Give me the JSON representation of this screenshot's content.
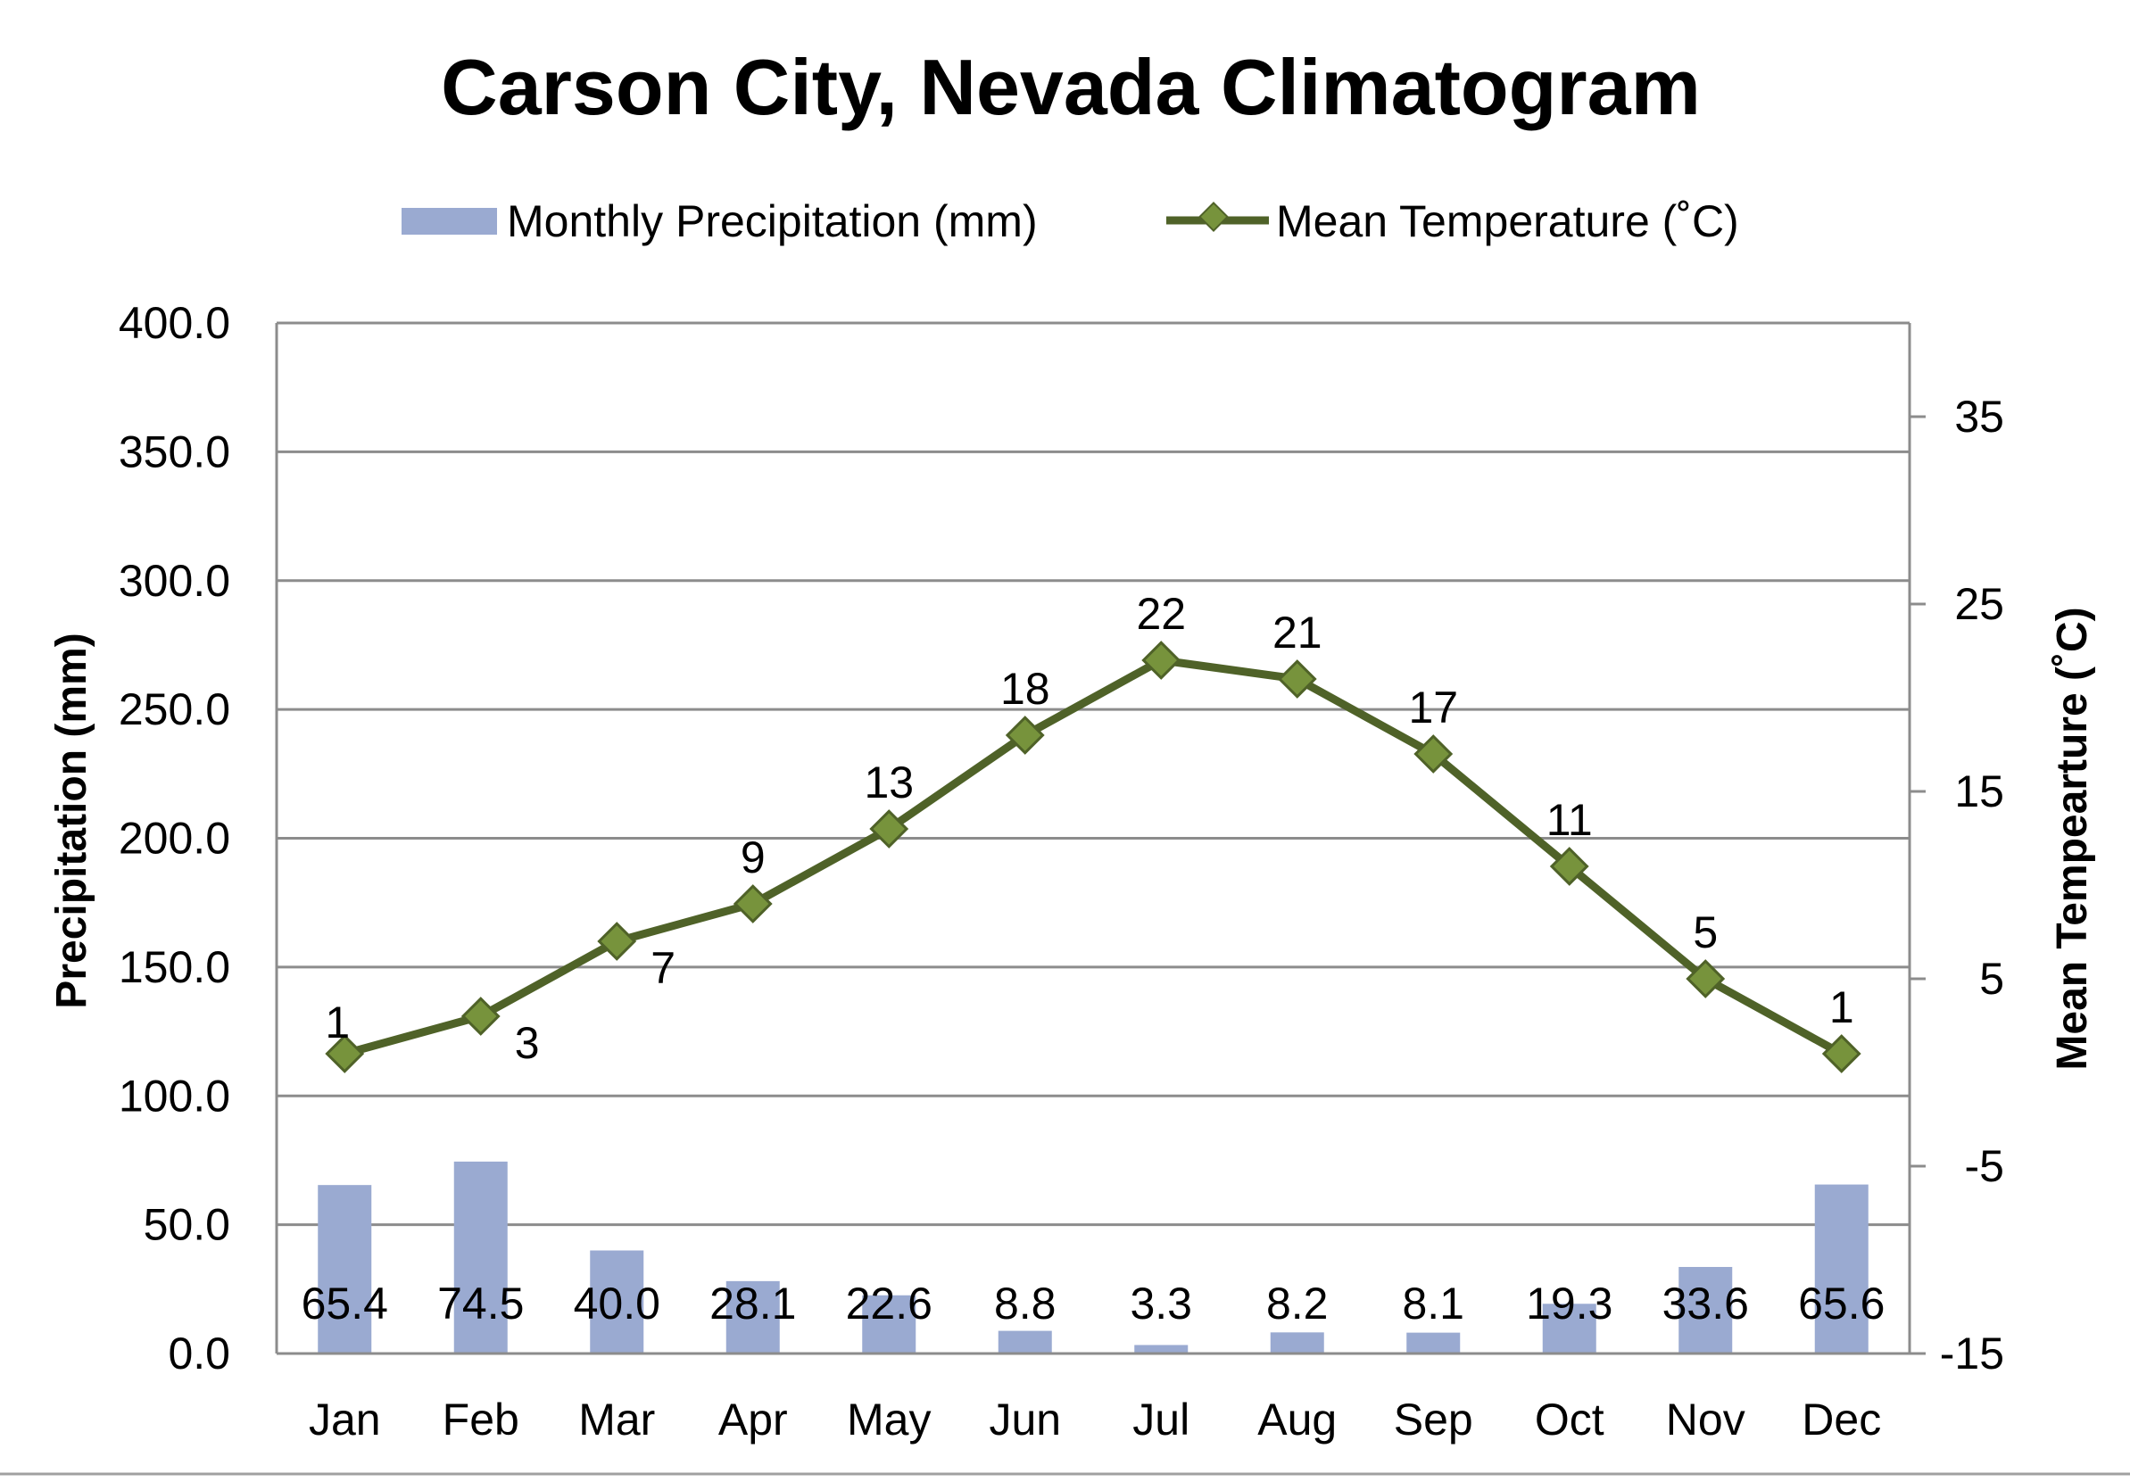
{
  "chart_data": {
    "type": "bar",
    "title": "Carson City, Nevada Climatogram",
    "categories": [
      "Jan",
      "Feb",
      "Mar",
      "Apr",
      "May",
      "Jun",
      "Jul",
      "Aug",
      "Sep",
      "Oct",
      "Nov",
      "Dec"
    ],
    "series": [
      {
        "name": "Monthly Precipitation (mm)",
        "type": "bar",
        "axis": "left",
        "values": [
          65.4,
          74.5,
          40.0,
          28.1,
          22.6,
          8.8,
          3.3,
          8.2,
          8.1,
          19.3,
          33.6,
          65.6
        ],
        "labels": [
          "65.4",
          "74.5",
          "40.0",
          "28.1",
          "22.6",
          "8.8",
          "3.3",
          "8.2",
          "8.1",
          "19.3",
          "33.6",
          "65.6"
        ],
        "color": "#9aaad1"
      },
      {
        "name": "Mean Temperature (˚C)",
        "type": "line",
        "axis": "right",
        "values": [
          1,
          3,
          7,
          9,
          13,
          18,
          22,
          21,
          17,
          11,
          5,
          1
        ],
        "labels": [
          "1",
          "3",
          "7",
          "9",
          "13",
          "18",
          "22",
          "21",
          "17",
          "11",
          "5",
          "1"
        ],
        "color": "#4f6228",
        "marker_color": "#77933c"
      }
    ],
    "left_axis": {
      "label": "Precipitation (mm)",
      "min": 0,
      "max": 400,
      "step": 50,
      "tick_labels": [
        "0.0",
        "50.0",
        "100.0",
        "150.0",
        "200.0",
        "250.0",
        "300.0",
        "350.0",
        "400.0"
      ]
    },
    "right_axis": {
      "label": "Mean Tempearture (˚C)",
      "min": -15,
      "max": 40,
      "ticks": [
        -15,
        -5,
        5,
        15,
        25,
        35
      ],
      "tick_labels": [
        "-15",
        "-5",
        "5",
        "15",
        "25",
        "35"
      ]
    },
    "grid": true,
    "legend_position": "top"
  }
}
